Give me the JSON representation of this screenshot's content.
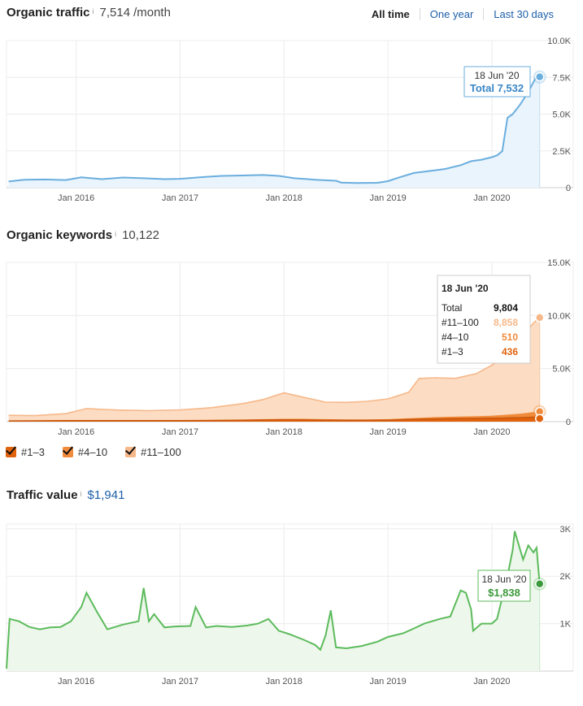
{
  "traffic": {
    "title": "Organic traffic",
    "info_icon": "i",
    "value": "7,514",
    "unit": "/month",
    "range_options": [
      "All time",
      "One year",
      "Last 30 days"
    ],
    "tooltip": {
      "date": "18 Jun '20",
      "label": "Total 7,532"
    }
  },
  "keywords": {
    "title": "Organic keywords",
    "info_icon": "i",
    "value": "10,122",
    "tooltip": {
      "date": "18 Jun '20",
      "rows": [
        {
          "label": "Total",
          "value": "9,804"
        },
        {
          "label": "#11–100",
          "value": "8,858"
        },
        {
          "label": "#4–10",
          "value": "510"
        },
        {
          "label": "#1–3",
          "value": "436"
        }
      ]
    },
    "legend": [
      "#1–3",
      "#4–10",
      "#11–100"
    ]
  },
  "value": {
    "title": "Traffic value",
    "info_icon": "i",
    "value": "$1,941",
    "tooltip": {
      "date": "18 Jun '20",
      "label": "$1,838"
    }
  },
  "colors": {
    "traffic": "#6aaede",
    "traffic_fill": "#eaf4fc",
    "kw_11_100": "#f6b88a",
    "kw_11_100_fill": "#fcdcc2",
    "kw_4_10": "#f08b3c",
    "kw_1_3": "#e0620d",
    "value": "#5cbb5c",
    "value_fill": "#eef7ec",
    "grid": "#ececec",
    "axis_text": "#555555"
  },
  "chart_data": [
    {
      "type": "area",
      "title": "Organic traffic",
      "x_unit": "year",
      "x_ticks": [
        "Jan 2016",
        "Jan 2017",
        "Jan 2018",
        "Jan 2019",
        "Jan 2020"
      ],
      "y_ticks": [
        "10.0K",
        "7.5K",
        "5.0K",
        "2.5K",
        "0"
      ],
      "ylim": [
        0,
        10000
      ],
      "series": [
        {
          "x": [
            2015.35,
            2015.5,
            2015.7,
            2015.9,
            2016.05,
            2016.25,
            2016.45,
            2016.65,
            2016.85,
            2017.0,
            2017.2,
            2017.4,
            2017.6,
            2017.8,
            2017.95,
            2018.1,
            2018.3,
            2018.5,
            2018.55,
            2018.7,
            2018.9,
            2019.0,
            2019.1,
            2019.25,
            2019.4,
            2019.55,
            2019.7,
            2019.8,
            2019.9,
            2020.0,
            2020.05,
            2020.1,
            2020.15,
            2020.2,
            2020.27,
            2020.35,
            2020.42,
            2020.46
          ],
          "y": [
            420,
            540,
            560,
            520,
            700,
            580,
            690,
            640,
            580,
            600,
            710,
            800,
            830,
            860,
            800,
            640,
            540,
            470,
            350,
            320,
            330,
            440,
            680,
            1000,
            1130,
            1270,
            1530,
            1800,
            1900,
            2070,
            2200,
            2480,
            4750,
            5000,
            5630,
            6500,
            7450,
            7600
          ]
        }
      ],
      "tooltip": {
        "x": "18 Jun '20",
        "total": 7532
      }
    },
    {
      "type": "area",
      "stacked": true,
      "title": "Organic keywords",
      "x_unit": "year",
      "x_ticks": [
        "Jan 2016",
        "Jan 2017",
        "Jan 2018",
        "Jan 2019",
        "Jan 2020"
      ],
      "y_ticks": [
        "15.0K",
        "10.0K",
        "5.0K",
        "0"
      ],
      "ylim": [
        0,
        15000
      ],
      "x": [
        2015.35,
        2015.6,
        2015.9,
        2016.1,
        2016.4,
        2016.7,
        2017.0,
        2017.3,
        2017.6,
        2017.8,
        2018.0,
        2018.2,
        2018.4,
        2018.6,
        2018.8,
        2019.0,
        2019.2,
        2019.3,
        2019.45,
        2019.65,
        2019.85,
        2020.0,
        2020.1,
        2020.2,
        2020.3,
        2020.4,
        2020.46
      ],
      "series": [
        {
          "name": "#1–3",
          "values": [
            70,
            80,
            90,
            90,
            100,
            100,
            100,
            110,
            130,
            150,
            170,
            160,
            140,
            130,
            130,
            140,
            200,
            230,
            260,
            280,
            300,
            320,
            340,
            360,
            380,
            420,
            436
          ]
        },
        {
          "name": "#4–10",
          "values": [
            30,
            35,
            40,
            40,
            45,
            50,
            50,
            60,
            70,
            85,
            100,
            110,
            95,
            85,
            85,
            100,
            120,
            140,
            170,
            200,
            220,
            250,
            290,
            340,
            400,
            480,
            510
          ]
        },
        {
          "name": "#11–100",
          "values": [
            500,
            450,
            620,
            1100,
            950,
            880,
            960,
            1150,
            1500,
            1850,
            2450,
            2000,
            1600,
            1600,
            1700,
            1900,
            2450,
            3700,
            3700,
            3600,
            4000,
            4750,
            5300,
            6200,
            7300,
            8400,
            8858
          ]
        }
      ],
      "tooltip": {
        "x": "18 Jun '20",
        "total": 9804,
        "#11–100": 8858,
        "#4–10": 510,
        "#1–3": 436
      }
    },
    {
      "type": "area",
      "title": "Traffic value",
      "x_unit": "year",
      "x_ticks": [
        "Jan 2016",
        "Jan 2017",
        "Jan 2018",
        "Jan 2019",
        "Jan 2020"
      ],
      "y_ticks": [
        "3K",
        "2K",
        "1K"
      ],
      "ylim": [
        0,
        3100
      ],
      "series": [
        {
          "x": [
            2015.33,
            2015.36,
            2015.45,
            2015.55,
            2015.65,
            2015.75,
            2015.85,
            2015.95,
            2016.05,
            2016.1,
            2016.2,
            2016.3,
            2016.45,
            2016.6,
            2016.65,
            2016.7,
            2016.75,
            2016.85,
            2016.95,
            2017.1,
            2017.15,
            2017.25,
            2017.35,
            2017.5,
            2017.65,
            2017.75,
            2017.85,
            2017.95,
            2018.05,
            2018.2,
            2018.3,
            2018.35,
            2018.4,
            2018.45,
            2018.5,
            2018.6,
            2018.75,
            2018.9,
            2019.0,
            2019.15,
            2019.25,
            2019.35,
            2019.5,
            2019.6,
            2019.7,
            2019.75,
            2019.8,
            2019.82,
            2019.9,
            2020.0,
            2020.05,
            2020.15,
            2020.2,
            2020.22,
            2020.3,
            2020.35,
            2020.4,
            2020.43,
            2020.46
          ],
          "y": [
            50,
            1100,
            1050,
            930,
            880,
            920,
            930,
            1050,
            1350,
            1650,
            1250,
            880,
            980,
            1050,
            1750,
            1050,
            1200,
            920,
            940,
            950,
            1350,
            920,
            950,
            930,
            960,
            1000,
            1100,
            850,
            780,
            650,
            550,
            450,
            750,
            1280,
            500,
            480,
            530,
            620,
            720,
            800,
            900,
            1000,
            1100,
            1150,
            1700,
            1650,
            1300,
            850,
            1000,
            1000,
            1100,
            2000,
            2550,
            2950,
            2350,
            2650,
            2500,
            2600,
            1838
          ]
        }
      ],
      "tooltip": {
        "x": "18 Jun '20",
        "value": 1838
      }
    }
  ]
}
